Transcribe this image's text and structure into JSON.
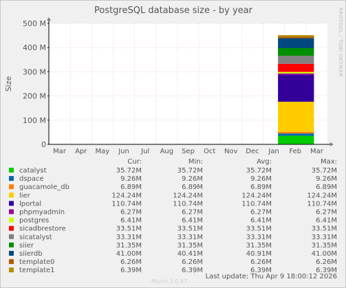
{
  "chart_data": {
    "type": "bar",
    "stacked": true,
    "title": "PostgreSQL database size - by year",
    "ylabel": "Size",
    "ylim": [
      0,
      500000000
    ],
    "y_ticks": [
      0,
      100000000,
      200000000,
      300000000,
      400000000,
      500000000
    ],
    "y_tick_labels": [
      "0",
      "100 M",
      "200 M",
      "300 M",
      "400 M",
      "500 M"
    ],
    "x_labels": [
      "Mar",
      "Apr",
      "May",
      "Jun",
      "Jul",
      "Aug",
      "Sep",
      "Oct",
      "Nov",
      "Dec",
      "Jan",
      "Feb",
      "Mar"
    ],
    "bar_span": [
      "Jan",
      "Mar"
    ],
    "grid": true,
    "columns": [
      "Cur:",
      "Min:",
      "Avg:",
      "Max:"
    ],
    "series": [
      {
        "name": "catalyst",
        "color": "#00cc00",
        "cur": "35.72M",
        "min": "35.72M",
        "avg": "35.72M",
        "max": "35.72M",
        "value": 35720000
      },
      {
        "name": "dspace",
        "color": "#0066b3",
        "cur": "9.26M",
        "min": "9.26M",
        "avg": "9.26M",
        "max": "9.26M",
        "value": 9260000
      },
      {
        "name": "guacamole_db",
        "color": "#ff8000",
        "cur": "6.89M",
        "min": "6.89M",
        "avg": "6.89M",
        "max": "6.89M",
        "value": 6890000
      },
      {
        "name": "lier",
        "color": "#ffcc00",
        "cur": "124.24M",
        "min": "124.24M",
        "avg": "124.24M",
        "max": "124.24M",
        "value": 124240000
      },
      {
        "name": "lportal",
        "color": "#330099",
        "cur": "110.74M",
        "min": "110.74M",
        "avg": "110.74M",
        "max": "110.74M",
        "value": 110740000
      },
      {
        "name": "phpmyadmin",
        "color": "#990099",
        "cur": "6.27M",
        "min": "6.27M",
        "avg": "6.27M",
        "max": "6.27M",
        "value": 6270000
      },
      {
        "name": "postgres",
        "color": "#ccff00",
        "cur": "6.41M",
        "min": "6.41M",
        "avg": "6.41M",
        "max": "6.41M",
        "value": 6410000
      },
      {
        "name": "sicadbrestore",
        "color": "#ff0000",
        "cur": "33.51M",
        "min": "33.51M",
        "avg": "33.51M",
        "max": "33.51M",
        "value": 33510000
      },
      {
        "name": "sicatalyst",
        "color": "#808080",
        "cur": "33.31M",
        "min": "33.31M",
        "avg": "33.31M",
        "max": "33.31M",
        "value": 33310000
      },
      {
        "name": "siier",
        "color": "#008f00",
        "cur": "31.35M",
        "min": "31.35M",
        "avg": "31.35M",
        "max": "31.35M",
        "value": 31350000
      },
      {
        "name": "siierdb",
        "color": "#00487d",
        "cur": "41.00M",
        "min": "40.41M",
        "avg": "40.91M",
        "max": "41.00M",
        "value": 41000000
      },
      {
        "name": "template0",
        "color": "#b35a00",
        "cur": "6.26M",
        "min": "6.26M",
        "avg": "6.26M",
        "max": "6.26M",
        "value": 6260000
      },
      {
        "name": "template1",
        "color": "#b38f00",
        "cur": "6.39M",
        "min": "6.39M",
        "avg": "6.39M",
        "max": "6.39M",
        "value": 6390000
      }
    ],
    "last_update": "Last update: Thu Apr  9 18:00:12 2026",
    "watermark": "Munin 2.0.67",
    "side_label": "RRDTOOL / TOBI OETIKER"
  }
}
